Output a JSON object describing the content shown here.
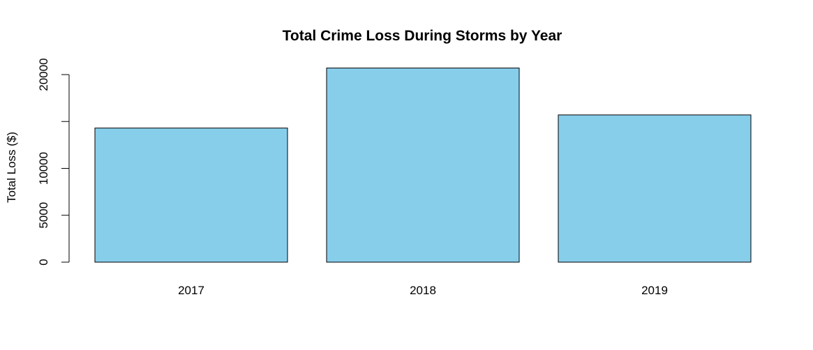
{
  "chart_data": {
    "type": "bar",
    "title": "Total Crime Loss During Storms by Year",
    "xlabel": "",
    "ylabel": "Total Loss ($)",
    "categories": [
      "2017",
      "2018",
      "2019"
    ],
    "values": [
      14300,
      20700,
      15700
    ],
    "ylim": [
      0,
      20000
    ],
    "yticks": [
      0,
      5000,
      10000,
      15000,
      20000
    ],
    "ytick_labels": [
      "0",
      "5000",
      "10000",
      "",
      "20000"
    ],
    "bar_color": "#87CEEB",
    "bar_border_color": "#000000",
    "grid": false,
    "legend": "none"
  }
}
